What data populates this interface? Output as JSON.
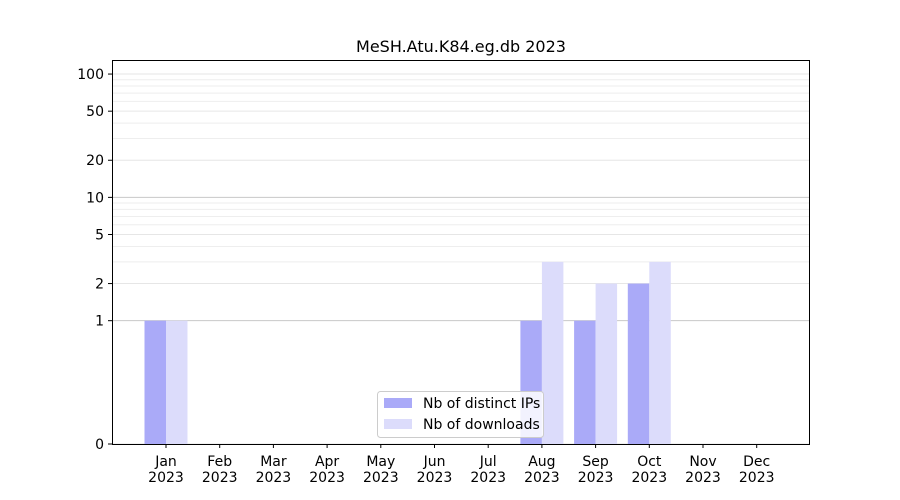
{
  "chart_data": {
    "type": "bar",
    "title": "MeSH.Atu.K84.eg.db 2023",
    "xlabel": "",
    "ylabel": "",
    "y_scale": "symlog",
    "ylim": [
      0,
      130
    ],
    "grid": "horizontal",
    "legend_position": "lower-center",
    "y_ticks": [
      0,
      1,
      2,
      5,
      10,
      20,
      50,
      100
    ],
    "y_tick_labels": [
      "0",
      "1",
      "2",
      "5",
      "10",
      "20",
      "50",
      "100"
    ],
    "categories": [
      {
        "month": "Jan",
        "year": "2023"
      },
      {
        "month": "Feb",
        "year": "2023"
      },
      {
        "month": "Mar",
        "year": "2023"
      },
      {
        "month": "Apr",
        "year": "2023"
      },
      {
        "month": "May",
        "year": "2023"
      },
      {
        "month": "Jun",
        "year": "2023"
      },
      {
        "month": "Jul",
        "year": "2023"
      },
      {
        "month": "Aug",
        "year": "2023"
      },
      {
        "month": "Sep",
        "year": "2023"
      },
      {
        "month": "Oct",
        "year": "2023"
      },
      {
        "month": "Nov",
        "year": "2023"
      },
      {
        "month": "Dec",
        "year": "2023"
      }
    ],
    "series": [
      {
        "name": "Nb of distinct IPs",
        "color": "#aaaaf8",
        "values": [
          1,
          0,
          0,
          0,
          0,
          0,
          0,
          1,
          1,
          2,
          0,
          0
        ]
      },
      {
        "name": "Nb of downloads",
        "color": "#dcdcfb",
        "values": [
          1,
          0,
          0,
          0,
          0,
          0,
          0,
          3,
          2,
          3,
          0,
          0
        ]
      }
    ]
  }
}
